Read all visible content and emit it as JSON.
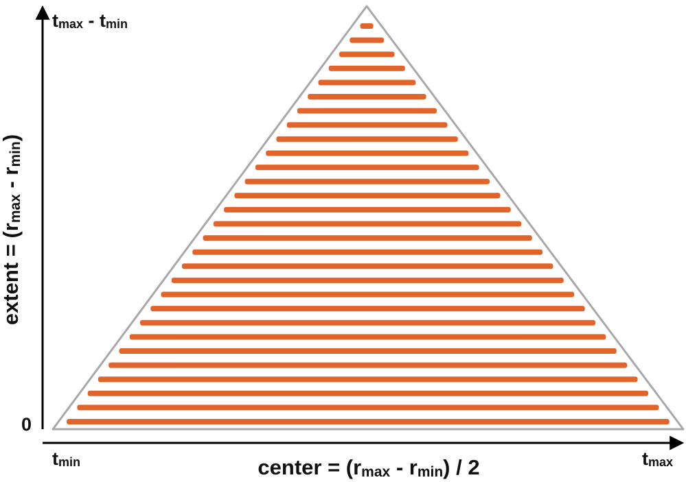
{
  "diagram": {
    "y_axis": {
      "top_label": {
        "base": "t",
        "sub": "max",
        "rest": " - t",
        "sub2": "min"
      },
      "zero_label": "0",
      "title": {
        "prefix": "extent = (r",
        "sub1": "max",
        "mid": " - r",
        "sub2": "min",
        "suffix": ")"
      }
    },
    "x_axis": {
      "left_label": {
        "base": "t",
        "sub": "min"
      },
      "right_label": {
        "base": "t",
        "sub": "max"
      },
      "title": {
        "prefix": "center = (r",
        "sub1": "max",
        "mid": " - r",
        "sub2": "min",
        "suffix": ") / 2"
      }
    },
    "colors": {
      "stripe": "#e2642a",
      "triangle_outline": "#a8a8a8",
      "axis": "#000000"
    },
    "stripe_count": 29
  }
}
